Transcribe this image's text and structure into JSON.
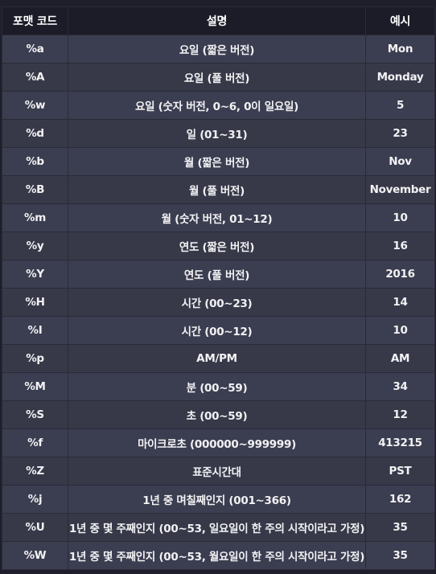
{
  "headers": [
    "포맷 코드",
    "설명",
    "예시"
  ],
  "rows": [
    {
      "code": "%a",
      "desc": "요일 (짧은 버전)",
      "example": "Mon"
    },
    {
      "code": "%A",
      "desc": "요일 (풀 버전)",
      "example": "Monday"
    },
    {
      "code": "%w",
      "desc": "요일 (숫자 버전, 0~6, 0이 일요일)",
      "example": "5"
    },
    {
      "code": "%d",
      "desc": "일 (01~31)",
      "example": "23"
    },
    {
      "code": "%b",
      "desc": "월 (짧은 버전)",
      "example": "Nov"
    },
    {
      "code": "%B",
      "desc": "월 (풀 버전)",
      "example": "November"
    },
    {
      "code": "%m",
      "desc": "월 (숫자 버전, 01~12)",
      "example": "10"
    },
    {
      "code": "%y",
      "desc": "연도 (짧은 버전)",
      "example": "16"
    },
    {
      "code": "%Y",
      "desc": "연도 (풀 버전)",
      "example": "2016"
    },
    {
      "code": "%H",
      "desc": "시간 (00~23)",
      "example": "14"
    },
    {
      "code": "%I",
      "desc": "시간 (00~12)",
      "example": "10"
    },
    {
      "code": "%p",
      "desc": "AM/PM",
      "example": "AM"
    },
    {
      "code": "%M",
      "desc": "분 (00~59)",
      "example": "34"
    },
    {
      "code": "%S",
      "desc": "초 (00~59)",
      "example": "12"
    },
    {
      "code": "%f",
      "desc": "마이크로초 (000000~999999)",
      "example": "413215"
    },
    {
      "code": "%Z",
      "desc": "표준시간대",
      "example": "PST"
    },
    {
      "code": "%j",
      "desc": "1년 중 며칠째인지 (001~366)",
      "example": "162"
    },
    {
      "code": "%U",
      "desc": "1년 중 몇 주째인지 (00~53, 일요일이 한 주의 시작이라고 가정)",
      "example": "35"
    },
    {
      "code": "%W",
      "desc": "1년 중 몇 주째인지 (00~53, 월요일이 한 주의 시작이라고 가정)",
      "example": "35"
    }
  ]
}
